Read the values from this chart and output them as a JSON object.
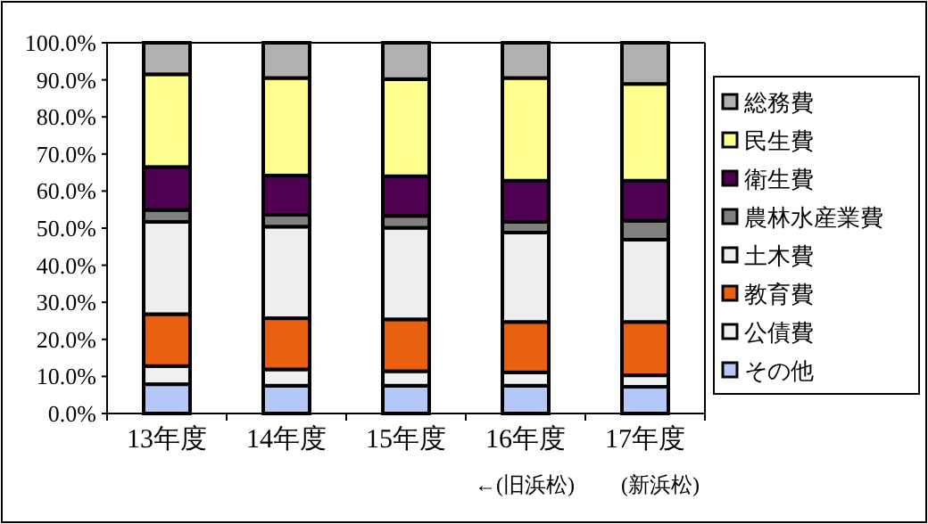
{
  "chart_data": {
    "type": "bar",
    "stacked": true,
    "categories": [
      "13年度",
      "14年度",
      "15年度",
      "16年度",
      "17年度"
    ],
    "series": [
      {
        "name": "その他",
        "color": "#b4c8f8",
        "values": [
          7.9,
          7.5,
          7.5,
          7.5,
          7.2
        ]
      },
      {
        "name": "公債費",
        "color": "#f0f0f0",
        "values": [
          4.9,
          4.4,
          3.9,
          3.6,
          3.1
        ]
      },
      {
        "name": "教育費",
        "color": "#e86010",
        "values": [
          14.0,
          13.8,
          14.0,
          13.6,
          14.4
        ]
      },
      {
        "name": "土木費",
        "color": "#eeeeee",
        "values": [
          24.9,
          24.7,
          24.7,
          24.1,
          22.2
        ]
      },
      {
        "name": "農林水産業費",
        "color": "#808080",
        "values": [
          3.2,
          3.2,
          3.2,
          2.9,
          5.1
        ]
      },
      {
        "name": "衛生費",
        "color": "#500050",
        "values": [
          11.6,
          10.6,
          10.7,
          11.1,
          10.8
        ]
      },
      {
        "name": "民生費",
        "color": "#ffff90",
        "values": [
          25.0,
          26.3,
          26.2,
          27.7,
          26.1
        ]
      },
      {
        "name": "総務費",
        "color": "#b0b0b0",
        "values": [
          8.5,
          9.5,
          9.8,
          9.5,
          11.1
        ]
      }
    ],
    "ylim": [
      0,
      100
    ],
    "yticks": [
      {
        "value": 0,
        "label": "0.0%"
      },
      {
        "value": 10,
        "label": "10.0%"
      },
      {
        "value": 20,
        "label": "20.0%"
      },
      {
        "value": 30,
        "label": "30.0%"
      },
      {
        "value": 40,
        "label": "40.0%"
      },
      {
        "value": 50,
        "label": "50.0%"
      },
      {
        "value": 60,
        "label": "60.0%"
      },
      {
        "value": 70,
        "label": "70.0%"
      },
      {
        "value": 80,
        "label": "80.0%"
      },
      {
        "value": 90,
        "label": "90.0%"
      },
      {
        "value": 100,
        "label": "100.0%"
      }
    ],
    "legend": "right",
    "grid": false,
    "annotations": [
      "←(旧浜松)",
      "(新浜松)"
    ]
  }
}
